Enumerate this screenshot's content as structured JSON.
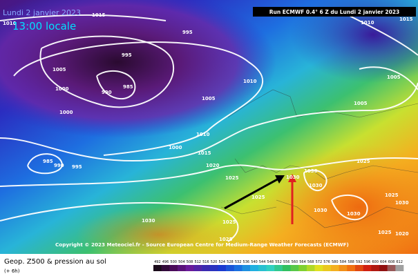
{
  "header": {
    "date": "Lundi 2 janvier 2023",
    "time": "13:00 locale",
    "run": "Run ECMWF 0.4° 6 Z du Lundi 2 janvier 2023"
  },
  "copyright": "Copyright © 2023 Meteociel.fr - Source European Centre for Medium-Range Weather Forecasts (ECMWF)",
  "isobar_labels": [
    "1015",
    "1010",
    "995",
    "995",
    "990",
    "985",
    "1005",
    "1000",
    "1000",
    "1005",
    "1010",
    "1005",
    "1005",
    "1010",
    "1015",
    "1010",
    "1015",
    "1000",
    "1020",
    "985",
    "990",
    "995",
    "1025",
    "1025",
    "1030",
    "1025",
    "1030",
    "1030",
    "1030",
    "1030",
    "1025",
    "1025",
    "1030",
    "1025",
    "1020",
    "1025",
    "1030"
  ],
  "legend": {
    "title": "Geop. Z500 & pression au sol",
    "step": "(+ 6h)",
    "scale": [
      "492",
      "496",
      "500",
      "504",
      "508",
      "512",
      "516",
      "520",
      "524",
      "528",
      "532",
      "536",
      "540",
      "544",
      "548",
      "552",
      "556",
      "560",
      "564",
      "568",
      "572",
      "576",
      "580",
      "584",
      "588",
      "592",
      "596",
      "600",
      "604",
      "608",
      "612"
    ]
  }
}
